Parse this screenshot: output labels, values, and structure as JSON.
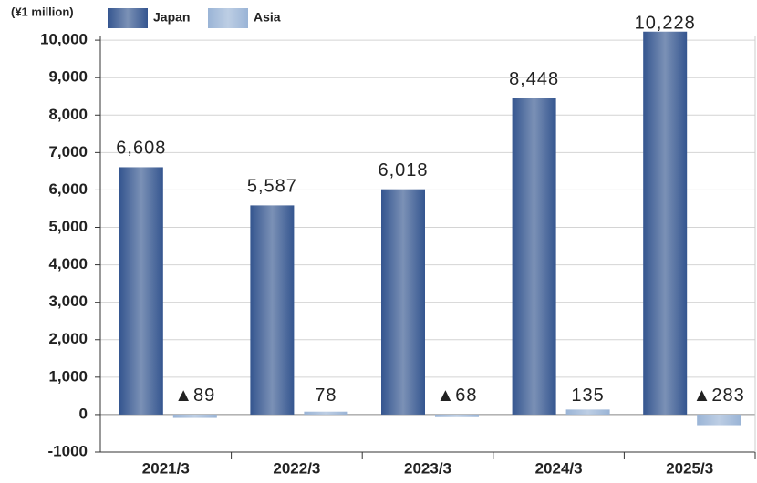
{
  "chart_data": {
    "type": "bar",
    "y_label": "(¥1 million)",
    "categories": [
      "2021/3",
      "2022/3",
      "2023/3",
      "2024/3",
      "2025/3"
    ],
    "series": [
      {
        "name": "Japan",
        "color": "#34558f",
        "values": [
          6608,
          5587,
          6018,
          8448,
          10228
        ],
        "value_labels": [
          "6,608",
          "5,587",
          "6,018",
          "8,448",
          "10,228"
        ]
      },
      {
        "name": "Asia",
        "color": "#9ab4d6",
        "values": [
          -89,
          78,
          -68,
          135,
          -283
        ],
        "value_labels": [
          "▲89",
          "78",
          "▲68",
          "135",
          "▲283"
        ]
      }
    ],
    "ylim": [
      -1000,
      10100
    ],
    "yticks": [
      -1000,
      0,
      {
        "value": 1000,
        "label": "1,000"
      },
      {
        "value": 2000,
        "label": "2,000"
      },
      {
        "value": 3000,
        "label": "3,000"
      },
      {
        "value": 4000,
        "label": "4,000"
      },
      {
        "value": 5000,
        "label": "5,000"
      },
      {
        "value": 6000,
        "label": "6,000"
      },
      {
        "value": 7000,
        "label": "7,000"
      },
      {
        "value": 8000,
        "label": "8,000"
      },
      {
        "value": 9000,
        "label": "9,000"
      },
      {
        "value": 10000,
        "label": "10,000"
      }
    ],
    "grid": true,
    "legend": "top"
  }
}
